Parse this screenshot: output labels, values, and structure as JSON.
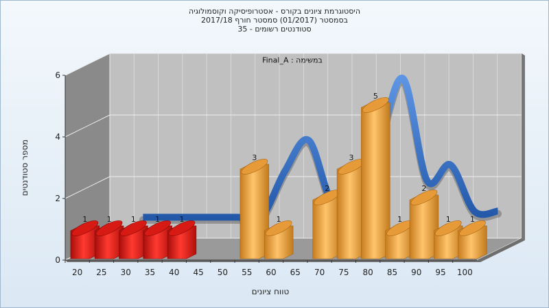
{
  "chart_data": {
    "type": "bar",
    "title_lines": [
      "היסטוגרמת ציונים בקורס - אסטרופיסיקה וקוסמולוגיה",
      "בסמסטר  (01/2017)  סמסטר חורף 2017/18",
      "סטודנטים רשומים - 35"
    ],
    "inset_label": "Final_A : במשימה",
    "xlabel": "טווח ציונים",
    "ylabel": "מספר סטודנטים",
    "categories": [
      "20",
      "25",
      "30",
      "35",
      "40",
      "45",
      "50",
      "55",
      "60",
      "65",
      "70",
      "75",
      "80",
      "85",
      "90",
      "95",
      "100"
    ],
    "y_ticks": [
      "0",
      "2",
      "4",
      "6"
    ],
    "ylim": [
      0,
      6
    ],
    "grid": true,
    "bars": [
      {
        "x": 20,
        "value": 1,
        "color": "#e0221c"
      },
      {
        "x": 25,
        "value": 1,
        "color": "#e0221c"
      },
      {
        "x": 30,
        "value": 1,
        "color": "#e0221c"
      },
      {
        "x": 35,
        "value": 1,
        "color": "#e0221c"
      },
      {
        "x": 40,
        "value": 1,
        "color": "#e0221c"
      },
      {
        "x": 55,
        "value": 3,
        "color": "#f0a745"
      },
      {
        "x": 60,
        "value": 1,
        "color": "#f0a745"
      },
      {
        "x": 70,
        "value": 2,
        "color": "#f0a745"
      },
      {
        "x": 75,
        "value": 3,
        "color": "#f0a745"
      },
      {
        "x": 80,
        "value": 5,
        "color": "#f0a745"
      },
      {
        "x": 85,
        "value": 1,
        "color": "#f0a745"
      },
      {
        "x": 90,
        "value": 2,
        "color": "#f0a745"
      },
      {
        "x": 95,
        "value": 1,
        "color": "#f0a745"
      },
      {
        "x": 100,
        "value": 1,
        "color": "#f0a745"
      }
    ],
    "trend_values": [
      1,
      1,
      1,
      1,
      1,
      1,
      2.5,
      3.5,
      1.5,
      2,
      3.5,
      5.5,
      2.2,
      2.7,
      1.2,
      1.2
    ],
    "colors": {
      "fail_bar": "#e0221c",
      "pass_bar": "#f0a745",
      "trend_ribbon": "#2f6fc9",
      "plot_back": "#c0c0c0",
      "plot_wall": "#8a8a8a"
    }
  }
}
